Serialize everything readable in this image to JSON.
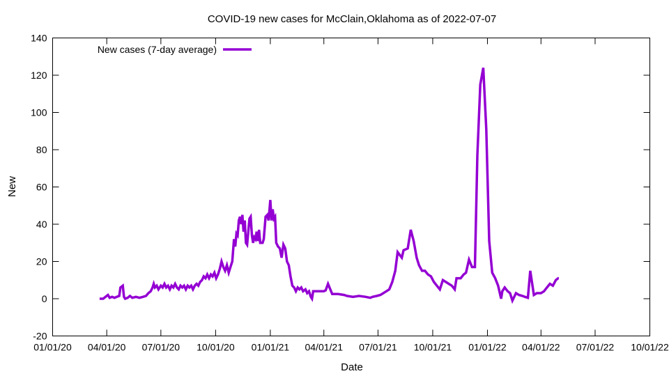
{
  "chart_data": {
    "type": "line",
    "title": "COVID-19 new cases for McClain,Oklahoma as of 2022-07-07",
    "xlabel": "Date",
    "ylabel": "New",
    "ylim": [
      -20,
      140
    ],
    "yticks": [
      -20,
      0,
      20,
      40,
      60,
      80,
      100,
      120,
      140
    ],
    "xlim": [
      "2020-01-01",
      "2022-10-01"
    ],
    "xticks": [
      {
        "date": "2020-01-01",
        "label": "01/01/20"
      },
      {
        "date": "2020-04-01",
        "label": "04/01/20"
      },
      {
        "date": "2020-07-01",
        "label": "07/01/20"
      },
      {
        "date": "2020-10-01",
        "label": "10/01/20"
      },
      {
        "date": "2021-01-01",
        "label": "01/01/21"
      },
      {
        "date": "2021-04-01",
        "label": "04/01/21"
      },
      {
        "date": "2021-07-01",
        "label": "07/01/21"
      },
      {
        "date": "2021-10-01",
        "label": "10/01/21"
      },
      {
        "date": "2022-01-01",
        "label": "01/01/22"
      },
      {
        "date": "2022-04-01",
        "label": "04/01/22"
      },
      {
        "date": "2022-07-01",
        "label": "07/01/22"
      },
      {
        "date": "2022-10-01",
        "label": "10/01/22"
      }
    ],
    "grid": false,
    "legend_position": "top-left",
    "series": [
      {
        "name": "New cases (7-day average)",
        "color": "#9400d3",
        "points": [
          [
            "2020-03-20",
            0
          ],
          [
            "2020-03-26",
            0
          ],
          [
            "2020-03-30",
            1
          ],
          [
            "2020-04-03",
            2
          ],
          [
            "2020-04-06",
            0.5
          ],
          [
            "2020-04-10",
            1
          ],
          [
            "2020-04-14",
            0.5
          ],
          [
            "2020-04-18",
            1
          ],
          [
            "2020-04-22",
            1.5
          ],
          [
            "2020-04-24",
            6
          ],
          [
            "2020-04-28",
            7
          ],
          [
            "2020-04-30",
            1
          ],
          [
            "2020-05-02",
            0
          ],
          [
            "2020-05-06",
            0.5
          ],
          [
            "2020-05-10",
            1.5
          ],
          [
            "2020-05-14",
            0.5
          ],
          [
            "2020-05-20",
            1
          ],
          [
            "2020-05-26",
            0.5
          ],
          [
            "2020-06-01",
            1
          ],
          [
            "2020-06-06",
            1.5
          ],
          [
            "2020-06-10",
            3
          ],
          [
            "2020-06-14",
            4
          ],
          [
            "2020-06-17",
            6
          ],
          [
            "2020-06-19",
            8
          ],
          [
            "2020-06-21",
            6
          ],
          [
            "2020-06-24",
            7
          ],
          [
            "2020-06-27",
            5
          ],
          [
            "2020-07-01",
            7
          ],
          [
            "2020-07-04",
            6
          ],
          [
            "2020-07-07",
            8
          ],
          [
            "2020-07-10",
            6
          ],
          [
            "2020-07-13",
            7
          ],
          [
            "2020-07-16",
            5
          ],
          [
            "2020-07-19",
            7
          ],
          [
            "2020-07-22",
            6
          ],
          [
            "2020-07-25",
            8
          ],
          [
            "2020-07-28",
            6
          ],
          [
            "2020-07-31",
            5
          ],
          [
            "2020-08-03",
            7
          ],
          [
            "2020-08-06",
            6
          ],
          [
            "2020-08-09",
            7
          ],
          [
            "2020-08-12",
            5
          ],
          [
            "2020-08-15",
            7
          ],
          [
            "2020-08-18",
            6
          ],
          [
            "2020-08-21",
            7
          ],
          [
            "2020-08-24",
            5
          ],
          [
            "2020-08-27",
            7
          ],
          [
            "2020-08-30",
            8
          ],
          [
            "2020-09-02",
            7
          ],
          [
            "2020-09-05",
            9
          ],
          [
            "2020-09-08",
            10
          ],
          [
            "2020-09-11",
            12
          ],
          [
            "2020-09-14",
            11
          ],
          [
            "2020-09-17",
            13
          ],
          [
            "2020-09-20",
            11
          ],
          [
            "2020-09-23",
            13
          ],
          [
            "2020-09-26",
            12
          ],
          [
            "2020-09-29",
            14
          ],
          [
            "2020-10-02",
            11
          ],
          [
            "2020-10-05",
            13
          ],
          [
            "2020-10-08",
            16
          ],
          [
            "2020-10-11",
            20
          ],
          [
            "2020-10-14",
            17
          ],
          [
            "2020-10-17",
            15
          ],
          [
            "2020-10-20",
            18
          ],
          [
            "2020-10-23",
            14
          ],
          [
            "2020-10-26",
            17
          ],
          [
            "2020-10-29",
            20
          ],
          [
            "2020-11-01",
            32
          ],
          [
            "2020-11-03",
            28
          ],
          [
            "2020-11-05",
            35
          ],
          [
            "2020-11-07",
            34
          ],
          [
            "2020-11-09",
            42
          ],
          [
            "2020-11-11",
            44
          ],
          [
            "2020-11-13",
            40
          ],
          [
            "2020-11-15",
            45
          ],
          [
            "2020-11-17",
            36
          ],
          [
            "2020-11-19",
            42
          ],
          [
            "2020-11-21",
            30
          ],
          [
            "2020-11-23",
            29
          ],
          [
            "2020-11-25",
            36
          ],
          [
            "2020-11-27",
            43
          ],
          [
            "2020-11-29",
            44
          ],
          [
            "2020-12-01",
            34
          ],
          [
            "2020-12-03",
            30
          ],
          [
            "2020-12-05",
            33
          ],
          [
            "2020-12-07",
            32
          ],
          [
            "2020-12-09",
            36
          ],
          [
            "2020-12-11",
            31
          ],
          [
            "2020-12-13",
            37
          ],
          [
            "2020-12-15",
            30
          ],
          [
            "2020-12-17",
            30
          ],
          [
            "2020-12-19",
            30
          ],
          [
            "2020-12-21",
            32
          ],
          [
            "2020-12-24",
            44
          ],
          [
            "2020-12-27",
            45
          ],
          [
            "2020-12-29",
            42
          ],
          [
            "2021-01-01",
            53
          ],
          [
            "2021-01-03",
            42
          ],
          [
            "2021-01-05",
            48
          ],
          [
            "2021-01-07",
            43
          ],
          [
            "2021-01-09",
            44
          ],
          [
            "2021-01-11",
            30
          ],
          [
            "2021-01-14",
            28
          ],
          [
            "2021-01-17",
            27
          ],
          [
            "2021-01-20",
            22
          ],
          [
            "2021-01-23",
            29
          ],
          [
            "2021-01-26",
            27
          ],
          [
            "2021-01-29",
            20
          ],
          [
            "2021-02-01",
            18
          ],
          [
            "2021-02-04",
            12
          ],
          [
            "2021-02-07",
            7
          ],
          [
            "2021-02-10",
            6
          ],
          [
            "2021-02-13",
            4
          ],
          [
            "2021-02-16",
            6
          ],
          [
            "2021-02-19",
            5
          ],
          [
            "2021-02-22",
            6
          ],
          [
            "2021-02-25",
            4
          ],
          [
            "2021-03-01",
            5
          ],
          [
            "2021-03-04",
            3
          ],
          [
            "2021-03-07",
            4
          ],
          [
            "2021-03-10",
            1
          ],
          [
            "2021-03-12",
            0
          ],
          [
            "2021-03-14",
            4
          ],
          [
            "2021-03-20",
            4
          ],
          [
            "2021-03-28",
            4
          ],
          [
            "2021-04-01",
            4
          ],
          [
            "2021-04-04",
            4.5
          ],
          [
            "2021-04-08",
            8
          ],
          [
            "2021-04-15",
            2.5
          ],
          [
            "2021-04-25",
            2.5
          ],
          [
            "2021-05-05",
            2
          ],
          [
            "2021-05-10",
            1.5
          ],
          [
            "2021-05-20",
            1
          ],
          [
            "2021-05-30",
            1.5
          ],
          [
            "2021-06-10",
            1
          ],
          [
            "2021-06-18",
            0.5
          ],
          [
            "2021-06-22",
            1
          ],
          [
            "2021-06-29",
            1.5
          ],
          [
            "2021-07-05",
            2
          ],
          [
            "2021-07-10",
            3
          ],
          [
            "2021-07-15",
            4
          ],
          [
            "2021-07-20",
            5
          ],
          [
            "2021-07-25",
            9
          ],
          [
            "2021-07-30",
            15
          ],
          [
            "2021-08-03",
            25
          ],
          [
            "2021-08-10",
            22
          ],
          [
            "2021-08-13",
            26
          ],
          [
            "2021-08-20",
            27
          ],
          [
            "2021-08-25",
            37
          ],
          [
            "2021-08-30",
            31
          ],
          [
            "2021-09-04",
            22
          ],
          [
            "2021-09-08",
            18
          ],
          [
            "2021-09-13",
            15
          ],
          [
            "2021-09-18",
            15
          ],
          [
            "2021-09-23",
            13
          ],
          [
            "2021-09-28",
            12
          ],
          [
            "2021-10-03",
            9
          ],
          [
            "2021-10-08",
            7
          ],
          [
            "2021-10-13",
            5
          ],
          [
            "2021-10-18",
            10
          ],
          [
            "2021-10-23",
            9
          ],
          [
            "2021-10-28",
            8
          ],
          [
            "2021-11-02",
            7
          ],
          [
            "2021-11-07",
            5
          ],
          [
            "2021-11-10",
            11
          ],
          [
            "2021-11-17",
            11
          ],
          [
            "2021-11-22",
            13
          ],
          [
            "2021-11-26",
            14
          ],
          [
            "2021-12-01",
            21
          ],
          [
            "2021-12-06",
            17
          ],
          [
            "2021-12-11",
            17
          ],
          [
            "2021-12-15",
            77
          ],
          [
            "2021-12-20",
            115
          ],
          [
            "2021-12-25",
            124
          ],
          [
            "2021-12-30",
            91
          ],
          [
            "2022-01-04",
            31
          ],
          [
            "2022-01-09",
            14
          ],
          [
            "2022-01-14",
            11
          ],
          [
            "2022-01-19",
            7
          ],
          [
            "2022-01-24",
            0
          ],
          [
            "2022-01-26",
            4
          ],
          [
            "2022-01-30",
            6
          ],
          [
            "2022-02-04",
            4
          ],
          [
            "2022-02-08",
            3
          ],
          [
            "2022-02-12",
            -1
          ],
          [
            "2022-02-18",
            3
          ],
          [
            "2022-02-23",
            2
          ],
          [
            "2022-03-01",
            1.5
          ],
          [
            "2022-03-05",
            1
          ],
          [
            "2022-03-10",
            0.5
          ],
          [
            "2022-03-14",
            15
          ],
          [
            "2022-03-20",
            2
          ],
          [
            "2022-03-25",
            3
          ],
          [
            "2022-04-01",
            3
          ],
          [
            "2022-04-06",
            4
          ],
          [
            "2022-04-11",
            6
          ],
          [
            "2022-04-16",
            8
          ],
          [
            "2022-04-21",
            7
          ],
          [
            "2022-04-26",
            10
          ],
          [
            "2022-04-30",
            11
          ],
          [
            "2022-05-01",
            11
          ]
        ]
      }
    ]
  }
}
